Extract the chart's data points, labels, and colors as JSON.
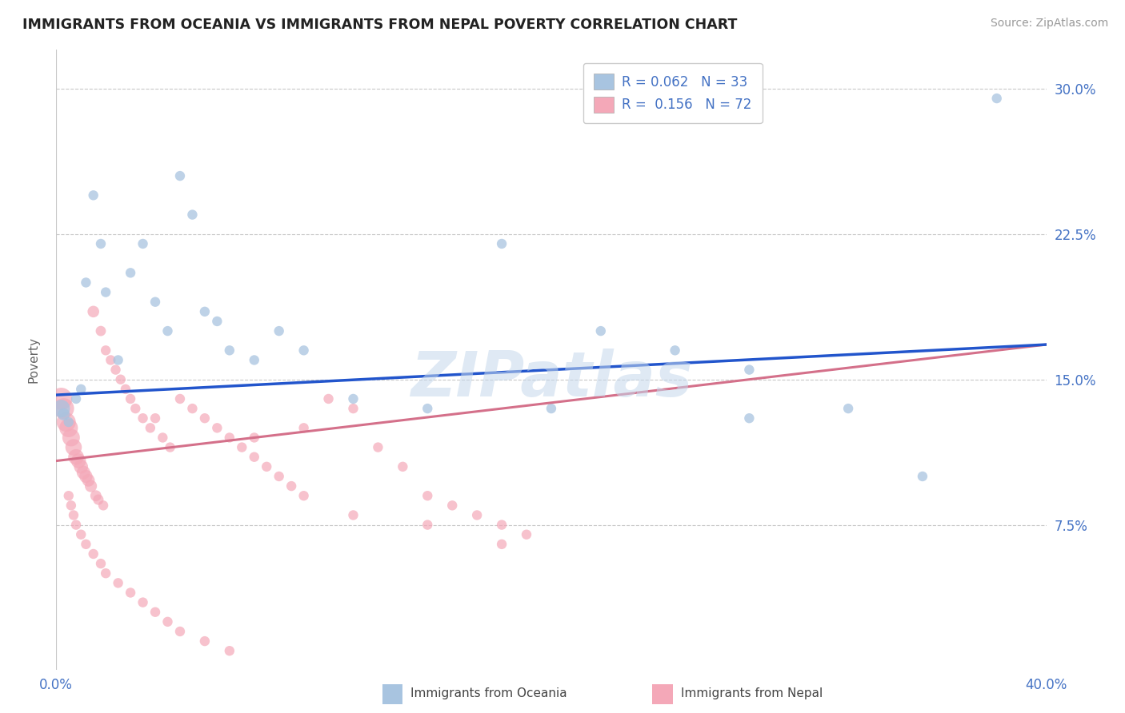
{
  "title": "IMMIGRANTS FROM OCEANIA VS IMMIGRANTS FROM NEPAL POVERTY CORRELATION CHART",
  "source": "Source: ZipAtlas.com",
  "ylabel": "Poverty",
  "watermark": "ZIPatlas",
  "legend_oceania": "R = 0.062   N = 33",
  "legend_nepal": "R =  0.156   N = 72",
  "legend_label_oceania": "Immigrants from Oceania",
  "legend_label_nepal": "Immigrants from Nepal",
  "color_oceania": "#a8c4e0",
  "color_nepal": "#f4a8b8",
  "color_line_oceania": "#2255cc",
  "color_line_nepal": "#d4708a",
  "color_text_blue": "#4472c4",
  "background": "#ffffff",
  "grid_color": "#c8c8c8",
  "xlim": [
    0.0,
    0.4
  ],
  "ylim": [
    0.0,
    0.32
  ],
  "yticks": [
    0.075,
    0.15,
    0.225,
    0.3
  ],
  "ytick_labels": [
    "7.5%",
    "15.0%",
    "22.5%",
    "30.0%"
  ],
  "xtick_labels": [
    "0.0%",
    "40.0%"
  ],
  "hlines": [
    0.075,
    0.15,
    0.225,
    0.3
  ],
  "oceania_line_x": [
    0.0,
    0.4
  ],
  "oceania_line_y": [
    0.142,
    0.168
  ],
  "nepal_line_x": [
    0.0,
    0.4
  ],
  "nepal_line_y": [
    0.108,
    0.168
  ],
  "oceania_x": [
    0.002,
    0.003,
    0.005,
    0.008,
    0.01,
    0.012,
    0.015,
    0.018,
    0.02,
    0.025,
    0.03,
    0.035,
    0.04,
    0.045,
    0.05,
    0.055,
    0.06,
    0.065,
    0.07,
    0.08,
    0.09,
    0.1,
    0.12,
    0.15,
    0.18,
    0.2,
    0.22,
    0.25,
    0.28,
    0.35,
    0.38,
    0.28,
    0.32
  ],
  "oceania_y": [
    0.135,
    0.132,
    0.128,
    0.14,
    0.145,
    0.2,
    0.245,
    0.22,
    0.195,
    0.16,
    0.205,
    0.22,
    0.19,
    0.175,
    0.255,
    0.235,
    0.185,
    0.18,
    0.165,
    0.16,
    0.175,
    0.165,
    0.14,
    0.135,
    0.22,
    0.135,
    0.175,
    0.165,
    0.155,
    0.1,
    0.295,
    0.13,
    0.135
  ],
  "oceania_sizes": [
    250,
    120,
    80,
    80,
    80,
    80,
    80,
    80,
    80,
    80,
    80,
    80,
    80,
    80,
    80,
    80,
    80,
    80,
    80,
    80,
    80,
    80,
    80,
    80,
    80,
    80,
    80,
    80,
    80,
    80,
    80,
    80,
    80
  ],
  "nepal_x": [
    0.002,
    0.003,
    0.004,
    0.005,
    0.006,
    0.007,
    0.008,
    0.009,
    0.01,
    0.011,
    0.012,
    0.013,
    0.014,
    0.015,
    0.016,
    0.017,
    0.018,
    0.019,
    0.02,
    0.022,
    0.024,
    0.026,
    0.028,
    0.03,
    0.032,
    0.035,
    0.038,
    0.04,
    0.043,
    0.046,
    0.05,
    0.055,
    0.06,
    0.065,
    0.07,
    0.075,
    0.08,
    0.085,
    0.09,
    0.095,
    0.1,
    0.11,
    0.12,
    0.13,
    0.14,
    0.15,
    0.16,
    0.17,
    0.18,
    0.19,
    0.005,
    0.006,
    0.007,
    0.008,
    0.01,
    0.012,
    0.015,
    0.018,
    0.02,
    0.025,
    0.03,
    0.035,
    0.04,
    0.045,
    0.05,
    0.06,
    0.07,
    0.08,
    0.1,
    0.12,
    0.15,
    0.18
  ],
  "nepal_y": [
    0.14,
    0.135,
    0.128,
    0.125,
    0.12,
    0.115,
    0.11,
    0.108,
    0.105,
    0.102,
    0.1,
    0.098,
    0.095,
    0.185,
    0.09,
    0.088,
    0.175,
    0.085,
    0.165,
    0.16,
    0.155,
    0.15,
    0.145,
    0.14,
    0.135,
    0.13,
    0.125,
    0.13,
    0.12,
    0.115,
    0.14,
    0.135,
    0.13,
    0.125,
    0.12,
    0.115,
    0.11,
    0.105,
    0.1,
    0.095,
    0.125,
    0.14,
    0.135,
    0.115,
    0.105,
    0.09,
    0.085,
    0.08,
    0.075,
    0.07,
    0.09,
    0.085,
    0.08,
    0.075,
    0.07,
    0.065,
    0.06,
    0.055,
    0.05,
    0.045,
    0.04,
    0.035,
    0.03,
    0.025,
    0.02,
    0.015,
    0.01,
    0.12,
    0.09,
    0.08,
    0.075,
    0.065
  ],
  "nepal_sizes": [
    400,
    350,
    300,
    280,
    250,
    220,
    200,
    180,
    160,
    150,
    140,
    130,
    120,
    110,
    100,
    90,
    85,
    80,
    80,
    80,
    80,
    80,
    80,
    80,
    80,
    80,
    80,
    80,
    80,
    80,
    80,
    80,
    80,
    80,
    80,
    80,
    80,
    80,
    80,
    80,
    80,
    80,
    80,
    80,
    80,
    80,
    80,
    80,
    80,
    80,
    80,
    80,
    80,
    80,
    80,
    80,
    80,
    80,
    80,
    80,
    80,
    80,
    80,
    80,
    80,
    80,
    80,
    80,
    80,
    80,
    80,
    80
  ]
}
